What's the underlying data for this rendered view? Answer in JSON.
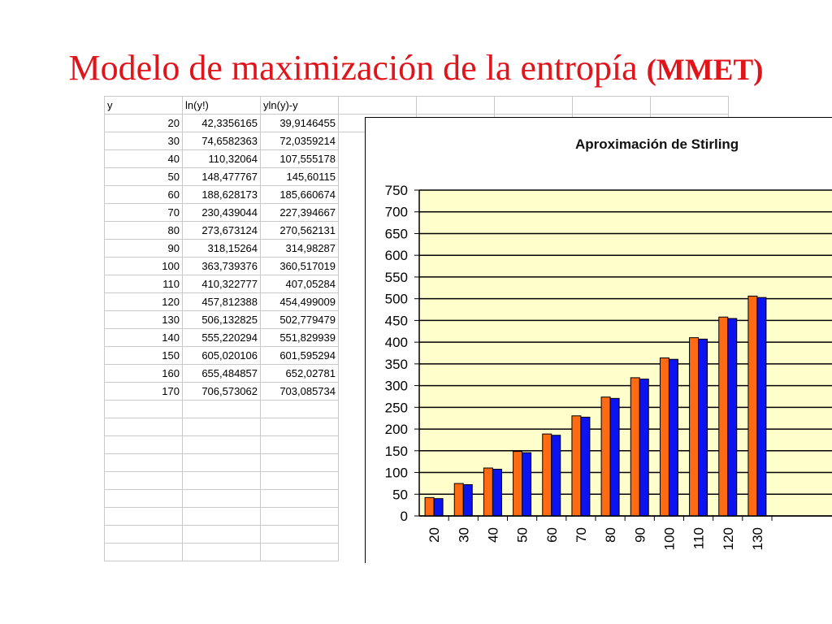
{
  "slide": {
    "title_main": "Modelo de maximización de la entropía",
    "title_tail": "(MMET)"
  },
  "table": {
    "headers": [
      "y",
      "ln(y!)",
      "yln(y)-y"
    ],
    "rows": [
      [
        "20",
        "42,3356165",
        "39,9146455"
      ],
      [
        "30",
        "74,6582363",
        "72,0359214"
      ],
      [
        "40",
        "110,32064",
        "107,555178"
      ],
      [
        "50",
        "148,477767",
        "145,60115"
      ],
      [
        "60",
        "188,628173",
        "185,660674"
      ],
      [
        "70",
        "230,439044",
        "227,394667"
      ],
      [
        "80",
        "273,673124",
        "270,562131"
      ],
      [
        "90",
        "318,15264",
        "314,98287"
      ],
      [
        "100",
        "363,739376",
        "360,517019"
      ],
      [
        "110",
        "410,322777",
        "407,05284"
      ],
      [
        "120",
        "457,812388",
        "454,499009"
      ],
      [
        "130",
        "506,132825",
        "502,779479"
      ],
      [
        "140",
        "555,220294",
        "551,829939"
      ],
      [
        "150",
        "605,020106",
        "601,595294"
      ],
      [
        "160",
        "655,484857",
        "652,02781"
      ],
      [
        "170",
        "706,573062",
        "703,085734"
      ]
    ]
  },
  "chart_data": {
    "type": "bar",
    "title": "Aproximación de Stirling",
    "xlabel": "",
    "ylabel": "",
    "categories": [
      "20",
      "30",
      "40",
      "50",
      "60",
      "70",
      "80",
      "90",
      "100",
      "110",
      "120",
      "130"
    ],
    "series": [
      {
        "values": [
          42.34,
          74.66,
          110.32,
          148.48,
          188.63,
          230.44,
          273.67,
          318.15,
          363.74,
          410.32,
          457.81,
          506.13
        ]
      },
      {
        "values": [
          39.91,
          72.04,
          107.56,
          145.6,
          185.66,
          227.39,
          270.56,
          314.98,
          360.52,
          407.05,
          454.5,
          502.78
        ]
      }
    ],
    "ylim": [
      0,
      750
    ],
    "yticks": [
      "0",
      "50",
      "100",
      "150",
      "200",
      "250",
      "300",
      "350",
      "400",
      "450",
      "500",
      "550",
      "600",
      "650",
      "700",
      "750"
    ],
    "grid": true,
    "legend": "none",
    "colors": {
      "series": [
        "#ff6a13",
        "#0a13f0"
      ],
      "plot_background": "#ffffcc",
      "title": "#111111"
    }
  }
}
